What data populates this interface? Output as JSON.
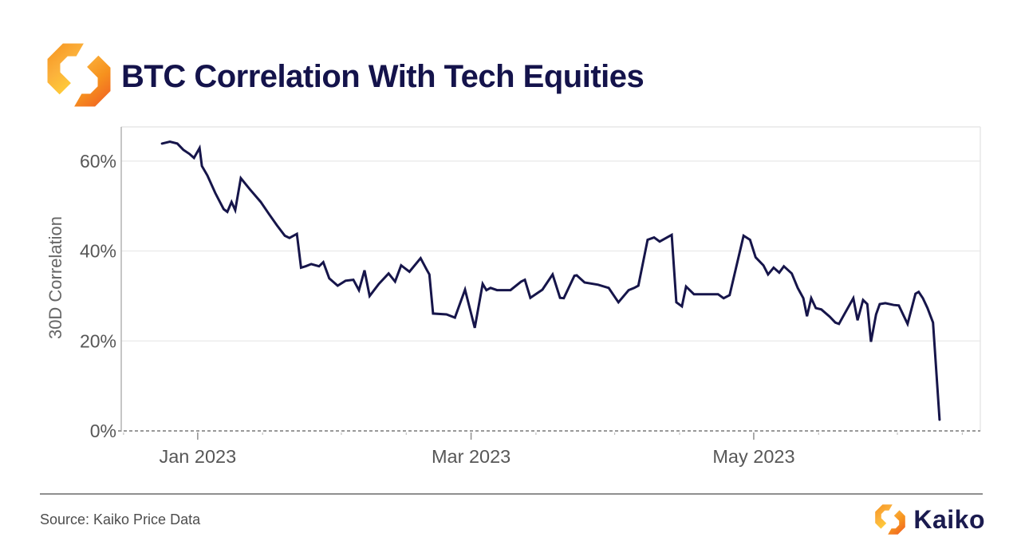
{
  "header": {
    "title": "BTC Correlation With Tech Equities"
  },
  "footer": {
    "source": "Source: Kaiko Price Data",
    "brand": "Kaiko"
  },
  "icons": {
    "logo_mark": "kaiko-hexagonal-brackets-mark"
  },
  "colors": {
    "title_navy": "#14134b",
    "series_navy": "#16154a",
    "brand_orange": "#f6921e",
    "brand_yellow": "#ffd139",
    "brand_orange_deep": "#f05a24",
    "text_gray": "#575757",
    "divider_gray": "#8f8f8f"
  },
  "chart_data": {
    "type": "line",
    "title": "BTC Correlation With Tech Equities",
    "xlabel": "",
    "ylabel": "30D Correlation",
    "x_unit": "days relative to Jan 1 2023",
    "x_domain": [
      -16.5,
      168.9
    ],
    "y_domain": [
      0,
      67.6
    ],
    "grid": "horizontal-only",
    "legend": "none",
    "zero_line_dashed": true,
    "y_ticks": [
      {
        "v": 0,
        "label": "0%"
      },
      {
        "v": 20,
        "label": "20%"
      },
      {
        "v": 40,
        "label": "40%"
      },
      {
        "v": 60,
        "label": "60%"
      }
    ],
    "x_ticks": [
      {
        "day": -16,
        "major": false,
        "label": ""
      },
      {
        "day": 0,
        "major": true,
        "label": "Jan 2023"
      },
      {
        "day": 14,
        "major": false,
        "label": ""
      },
      {
        "day": 31,
        "major": false,
        "label": ""
      },
      {
        "day": 45,
        "major": false,
        "label": ""
      },
      {
        "day": 59,
        "major": true,
        "label": "Mar 2023"
      },
      {
        "day": 73,
        "major": false,
        "label": ""
      },
      {
        "day": 90,
        "major": false,
        "label": ""
      },
      {
        "day": 104,
        "major": false,
        "label": ""
      },
      {
        "day": 120,
        "major": true,
        "label": "May 2023"
      },
      {
        "day": 134,
        "major": false,
        "label": ""
      },
      {
        "day": 151,
        "major": false,
        "label": ""
      },
      {
        "day": 165,
        "major": false,
        "label": ""
      }
    ],
    "style": {
      "line": "#16154a",
      "line_width": 3,
      "grid": "#ececec",
      "border": "#e7e7e7",
      "axis_left": "#b3b3b3",
      "zero_line": "#999999",
      "tick": "#8f8f8f",
      "tick_minor": "#b5b5b5",
      "tick_text": "#575757"
    },
    "series": [
      {
        "name": "BTC 30D correlation with tech equities",
        "color": "#16154a",
        "points": [
          [
            -7.7,
            63.9
          ],
          [
            -6,
            64.3
          ],
          [
            -4.4,
            63.9
          ],
          [
            -3.1,
            62.5
          ],
          [
            -1.8,
            61.6
          ],
          [
            -0.8,
            60.7
          ],
          [
            0.4,
            62.9
          ],
          [
            0.9,
            58.9
          ],
          [
            2.1,
            56.8
          ],
          [
            3.8,
            52.9
          ],
          [
            5.6,
            49.3
          ],
          [
            6.4,
            48.7
          ],
          [
            7.3,
            50.9
          ],
          [
            8.1,
            49.1
          ],
          [
            9.3,
            56.2
          ],
          [
            11.2,
            53.8
          ],
          [
            13.6,
            50.9
          ],
          [
            15.4,
            48.2
          ],
          [
            17.1,
            45.7
          ],
          [
            18.8,
            43.4
          ],
          [
            19.8,
            42.9
          ],
          [
            21.4,
            43.8
          ],
          [
            22.3,
            36.3
          ],
          [
            23.3,
            36.6
          ],
          [
            24.5,
            37.1
          ],
          [
            26.2,
            36.6
          ],
          [
            27.1,
            37.5
          ],
          [
            28.4,
            33.9
          ],
          [
            30.2,
            32.3
          ],
          [
            31.9,
            33.4
          ],
          [
            33.6,
            33.6
          ],
          [
            34.8,
            31.3
          ],
          [
            36,
            35.7
          ],
          [
            37.1,
            30
          ],
          [
            39.1,
            32.7
          ],
          [
            41.2,
            35
          ],
          [
            42.6,
            33.2
          ],
          [
            43.9,
            36.8
          ],
          [
            45.7,
            35.4
          ],
          [
            48.1,
            38.4
          ],
          [
            49.4,
            35.9
          ],
          [
            50,
            34.8
          ],
          [
            50.8,
            26.1
          ],
          [
            53.7,
            25.9
          ],
          [
            55.5,
            25.2
          ],
          [
            57.7,
            31.4
          ],
          [
            59.8,
            22.9
          ],
          [
            61.5,
            32.7
          ],
          [
            62.3,
            31.3
          ],
          [
            63.2,
            31.8
          ],
          [
            64.6,
            31.3
          ],
          [
            67.5,
            31.3
          ],
          [
            69.8,
            33.2
          ],
          [
            70.6,
            33.6
          ],
          [
            71.8,
            29.6
          ],
          [
            74.4,
            31.4
          ],
          [
            76.6,
            34.8
          ],
          [
            78.2,
            29.6
          ],
          [
            79,
            29.5
          ],
          [
            81.3,
            34.5
          ],
          [
            81.8,
            34.6
          ],
          [
            83.5,
            33
          ],
          [
            86.4,
            32.5
          ],
          [
            88.7,
            31.8
          ],
          [
            90.2,
            29.5
          ],
          [
            90.8,
            28.6
          ],
          [
            93,
            31.3
          ],
          [
            94.2,
            31.8
          ],
          [
            95.1,
            32.3
          ],
          [
            97.1,
            42.5
          ],
          [
            98.5,
            43
          ],
          [
            99.7,
            42.1
          ],
          [
            101.1,
            42.9
          ],
          [
            102.3,
            43.6
          ],
          [
            103.3,
            28.6
          ],
          [
            104.5,
            27.7
          ],
          [
            105.4,
            32.1
          ],
          [
            107.1,
            30.4
          ],
          [
            110.5,
            30.4
          ],
          [
            112.3,
            30.4
          ],
          [
            113.5,
            29.5
          ],
          [
            114.8,
            30.2
          ],
          [
            117.8,
            43.4
          ],
          [
            119.2,
            42.5
          ],
          [
            120.4,
            38.6
          ],
          [
            122.1,
            36.8
          ],
          [
            123.1,
            34.8
          ],
          [
            124.3,
            36.3
          ],
          [
            125.5,
            35.2
          ],
          [
            126.5,
            36.6
          ],
          [
            128.2,
            35
          ],
          [
            129.5,
            31.8
          ],
          [
            130.7,
            29.5
          ],
          [
            131.5,
            25.5
          ],
          [
            132.4,
            29.5
          ],
          [
            133.4,
            27.3
          ],
          [
            134.6,
            27
          ],
          [
            136.4,
            25.4
          ],
          [
            137.6,
            24.1
          ],
          [
            138.4,
            23.8
          ],
          [
            139.3,
            25.5
          ],
          [
            141.5,
            29.5
          ],
          [
            142.4,
            24.6
          ],
          [
            143.6,
            29.1
          ],
          [
            144.5,
            28.2
          ],
          [
            145.3,
            19.8
          ],
          [
            146.4,
            25.9
          ],
          [
            147.2,
            28.2
          ],
          [
            148.4,
            28.4
          ],
          [
            150.2,
            28
          ],
          [
            151.3,
            27.9
          ],
          [
            153.2,
            23.8
          ],
          [
            154.9,
            30.5
          ],
          [
            155.6,
            30.9
          ],
          [
            156.5,
            29.5
          ],
          [
            157.5,
            27.3
          ],
          [
            158.7,
            24.1
          ],
          [
            160.1,
            2.5
          ]
        ]
      }
    ]
  }
}
